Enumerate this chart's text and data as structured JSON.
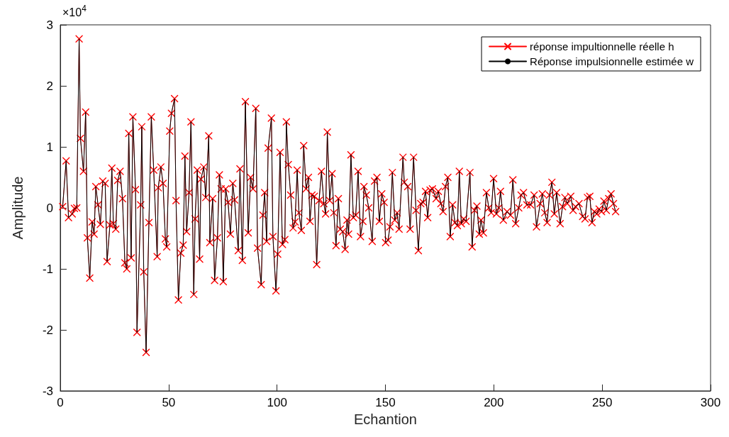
{
  "chart_data": {
    "type": "line",
    "xlabel": "Echantion",
    "ylabel": "Amplitude",
    "annotations": [
      "×10$^{4}$"
    ],
    "xlim": [
      0,
      300
    ],
    "xticks": [
      0,
      50,
      100,
      150,
      200,
      250,
      300
    ],
    "ylim": [
      -3,
      3
    ],
    "yticks": [
      -3,
      -2,
      -1,
      0,
      1,
      2,
      3
    ],
    "grid": false,
    "legend": "top right",
    "line_style": "solid",
    "x": [
      1.1,
      2.7,
      3.8,
      5.5,
      6.5,
      7.6,
      8.7,
      9.3,
      10.7,
      11.7,
      12.5,
      13.6,
      14.7,
      15.6,
      16.4,
      17.4,
      18.5,
      19.6,
      20.7,
      21.6,
      22.9,
      23.8,
      24.5,
      25.6,
      26.5,
      27.6,
      28.7,
      29.8,
      30.7,
      31.6,
      32.7,
      33.5,
      34.7,
      35.4,
      37.1,
      37.6,
      38.5,
      39.6,
      40.9,
      42.0,
      43.1,
      44.7,
      45.2,
      46.4,
      47.4,
      48.5,
      49.1,
      50.5,
      51.3,
      52.7,
      53.4,
      54.5,
      55.6,
      56.7,
      57.5,
      58.3,
      59.4,
      60.3,
      61.6,
      62.2,
      63.2,
      64.3,
      64.9,
      66.2,
      67.1,
      68.5,
      69.0,
      70.3,
      71.2,
      72.5,
      73.4,
      74.2,
      75.2,
      76.3,
      77.4,
      78.5,
      79.6,
      80.4,
      82.1,
      82.9,
      84.0,
      85.4,
      86.7,
      87.8,
      88.9,
      90.2,
      91.0,
      92.7,
      93.5,
      94.3,
      95.2,
      95.9,
      97.4,
      98.1,
      99.5,
      100.3,
      101.4,
      102.5,
      103.6,
      104.3,
      105.2,
      106.3,
      107.4,
      108.3,
      109.3,
      110.1,
      111.2,
      112.3,
      113.4,
      114.5,
      115.2,
      116.1,
      117.2,
      118.3,
      119.4,
      120.5,
      121.6,
      122.4,
      123.2,
      124.3,
      125.4,
      126.2,
      127.2,
      128.3,
      129.2,
      130.3,
      131.4,
      132.3,
      133.0,
      134.1,
      135.2,
      136.3,
      137.4,
      138.5,
      139.6,
      140.1,
      141.2,
      142.3,
      143.9,
      145.0,
      146.1,
      147.2,
      148.3,
      149.4,
      150.1,
      151.2,
      152.1,
      153.2,
      154.3,
      155.4,
      156.3,
      158.1,
      158.7,
      160.3,
      161.4,
      163.0,
      164.1,
      165.2,
      166.3,
      167.4,
      168.5,
      169.5,
      170.6,
      171.7,
      173.4,
      174.4,
      175.6,
      176.6,
      177.7,
      178.8,
      179.9,
      181.0,
      182.1,
      183.2,
      184.1,
      185.0,
      186.1,
      187.2,
      189.0,
      190.0,
      191.1,
      192.2,
      193.3,
      194.1,
      195.2,
      196.6,
      197.7,
      198.8,
      199.9,
      201.2,
      202.3,
      203.1,
      204.4,
      206.1,
      207.7,
      208.8,
      210.1,
      211.5,
      212.6,
      213.7,
      215.3,
      217.0,
      218.6,
      219.7,
      221.4,
      222.4,
      223.5,
      224.6,
      225.7,
      226.8,
      227.9,
      229.0,
      230.6,
      231.7,
      232.8,
      233.9,
      235.5,
      236.6,
      237.7,
      239.3,
      241.0,
      242.1,
      243.2,
      244.3,
      245.3,
      246.4,
      247.5,
      248.6,
      249.7,
      250.8,
      251.9,
      253.0,
      254.1,
      255.2,
      256.2
    ],
    "series": [
      {
        "name": "réponse impultionnelle réelle h",
        "color": "#ff0000",
        "marker": "cross",
        "values": [
          0.02,
          0.77,
          -0.16,
          -0.1,
          -0.01,
          0,
          2.77,
          1.14,
          0.6,
          1.57,
          -0.49,
          -1.15,
          -0.23,
          -0.43,
          0.35,
          0.05,
          -0.27,
          0.44,
          0.4,
          -0.88,
          -0.28,
          0.65,
          -0.26,
          -0.35,
          0.45,
          0.6,
          0.15,
          -0.9,
          -1.0,
          1.22,
          -0.82,
          1.49,
          0.3,
          -2.04,
          0.05,
          1.33,
          -1.05,
          -2.37,
          -0.24,
          1.49,
          0.62,
          -0.8,
          0.33,
          0.67,
          0.4,
          -0.51,
          -0.64,
          1.26,
          1.55,
          1.79,
          0.12,
          -1.51,
          -0.74,
          -0.61,
          0.85,
          -0.39,
          0.25,
          1.41,
          -1.42,
          -0.18,
          0.62,
          -0.84,
          0.47,
          0.67,
          0.17,
          1.18,
          -0.57,
          0.15,
          -1.19,
          -0.49,
          0.54,
          0.31,
          -1.21,
          0.31,
          0.09,
          -0.43,
          0.4,
          0.13,
          -0.7,
          0.64,
          -0.86,
          1.74,
          -0.41,
          0.5,
          0.31,
          1.63,
          -0.66,
          -1.26,
          -0.12,
          0.25,
          -0.55,
          0.98,
          1.47,
          -0.47,
          -1.36,
          -0.76,
          0.91,
          -0.6,
          -0.52,
          1.41,
          0.71,
          0.21,
          -0.33,
          -0.23,
          0.62,
          -0.08,
          -0.37,
          1.02,
          0.31,
          0.5,
          -0.22,
          0.21,
          0.19,
          -0.93,
          0.12,
          0.6,
          0.07,
          -0.1,
          1.24,
          0.12,
          0.56,
          -0.08,
          -0.62,
          0.15,
          -0.35,
          -0.39,
          -0.68,
          -0.2,
          -0.43,
          0.87,
          -0.16,
          -0.12,
          0.6,
          -0.47,
          -0.22,
          0.35,
          0.21,
          0,
          -0.55,
          0.44,
          0.5,
          -0.22,
          0.23,
          0.09,
          -0.57,
          -0.53,
          -0.31,
          0.58,
          -0.2,
          -0.08,
          -0.35,
          0.83,
          0.42,
          0.35,
          -0.35,
          0.83,
          -0.04,
          -0.7,
          0.07,
          0.09,
          0.27,
          -0.16,
          0.29,
          0.31,
          0.15,
          0.27,
          0.07,
          -0.06,
          0.35,
          0.5,
          -0.47,
          0.05,
          -0.24,
          -0.29,
          0.6,
          -0.26,
          -0.18,
          -0.22,
          0.58,
          -0.64,
          -0.04,
          0.03,
          -0.43,
          -0.2,
          -0.41,
          0.25,
          0,
          -0.08,
          0.48,
          -0.1,
          0,
          0.27,
          -0.2,
          -0.06,
          -0.12,
          0.46,
          -0.26,
          0,
          0.21,
          0.25,
          0.05,
          0.05,
          0.21,
          -0.31,
          0.07,
          0.23,
          -0.08,
          -0.24,
          0.21,
          0.42,
          -0.1,
          0.25,
          -0.26,
          0.02,
          0.17,
          0.07,
          0.19,
          -0.04,
          0.02,
          0.07,
          -0.14,
          -0.18,
          0.17,
          0.19,
          -0.24,
          -0.06,
          -0.1,
          -0.02,
          -0.06,
          0.11,
          -0.04,
          0.15,
          0.23,
          0.07,
          -0.06
        ]
      },
      {
        "name": "Réponse impulsionnelle estimée w",
        "color": "#000000",
        "marker": "none",
        "values": [
          0.02,
          0.77,
          -0.16,
          -0.1,
          -0.01,
          0,
          2.77,
          1.14,
          0.6,
          1.57,
          -0.49,
          -1.15,
          -0.23,
          -0.43,
          0.35,
          0.05,
          -0.27,
          0.44,
          0.4,
          -0.88,
          -0.28,
          0.65,
          -0.26,
          -0.35,
          0.45,
          0.6,
          0.15,
          -0.9,
          -1.0,
          1.22,
          -0.82,
          1.49,
          0.3,
          -2.04,
          0.05,
          1.33,
          -1.05,
          -2.37,
          -0.24,
          1.49,
          0.62,
          -0.8,
          0.33,
          0.67,
          0.4,
          -0.51,
          -0.64,
          1.26,
          1.55,
          1.79,
          0.12,
          -1.51,
          -0.74,
          -0.61,
          0.85,
          -0.39,
          0.25,
          1.41,
          -1.42,
          -0.18,
          0.62,
          -0.84,
          0.47,
          0.67,
          0.17,
          1.18,
          -0.57,
          0.15,
          -1.19,
          -0.49,
          0.54,
          0.31,
          -1.21,
          0.31,
          0.09,
          -0.43,
          0.4,
          0.13,
          -0.7,
          0.64,
          -0.86,
          1.74,
          -0.41,
          0.5,
          0.31,
          1.63,
          -0.66,
          -1.26,
          -0.12,
          0.25,
          -0.55,
          0.98,
          1.47,
          -0.47,
          -1.36,
          -0.76,
          0.91,
          -0.6,
          -0.52,
          1.41,
          0.71,
          0.21,
          -0.33,
          -0.23,
          0.62,
          -0.08,
          -0.37,
          1.02,
          0.31,
          0.5,
          -0.22,
          0.21,
          0.19,
          -0.93,
          0.12,
          0.6,
          0.07,
          -0.1,
          1.24,
          0.12,
          0.56,
          -0.08,
          -0.62,
          0.15,
          -0.35,
          -0.39,
          -0.68,
          -0.2,
          -0.43,
          0.87,
          -0.16,
          -0.12,
          0.6,
          -0.47,
          -0.22,
          0.35,
          0.21,
          0,
          -0.55,
          0.44,
          0.5,
          -0.22,
          0.23,
          0.09,
          -0.57,
          -0.53,
          -0.31,
          0.58,
          -0.2,
          -0.08,
          -0.35,
          0.83,
          0.42,
          0.35,
          -0.35,
          0.83,
          -0.04,
          -0.7,
          0.07,
          0.09,
          0.27,
          -0.16,
          0.29,
          0.31,
          0.15,
          0.27,
          0.07,
          -0.06,
          0.35,
          0.5,
          -0.47,
          0.05,
          -0.24,
          -0.29,
          0.6,
          -0.26,
          -0.18,
          -0.22,
          0.58,
          -0.64,
          -0.04,
          0.03,
          -0.43,
          -0.2,
          -0.41,
          0.25,
          0,
          -0.08,
          0.48,
          -0.1,
          0,
          0.27,
          -0.2,
          -0.06,
          -0.12,
          0.46,
          -0.26,
          0,
          0.21,
          0.25,
          0.05,
          0.05,
          0.21,
          -0.31,
          0.07,
          0.23,
          -0.08,
          -0.24,
          0.21,
          0.42,
          -0.1,
          0.25,
          -0.26,
          0.02,
          0.17,
          0.07,
          0.19,
          -0.04,
          0.02,
          0.07,
          -0.14,
          -0.18,
          0.17,
          0.19,
          -0.24,
          -0.06,
          -0.1,
          -0.02,
          -0.06,
          0.11,
          -0.04,
          0.15,
          0.23,
          0.07,
          -0.06
        ]
      }
    ]
  }
}
